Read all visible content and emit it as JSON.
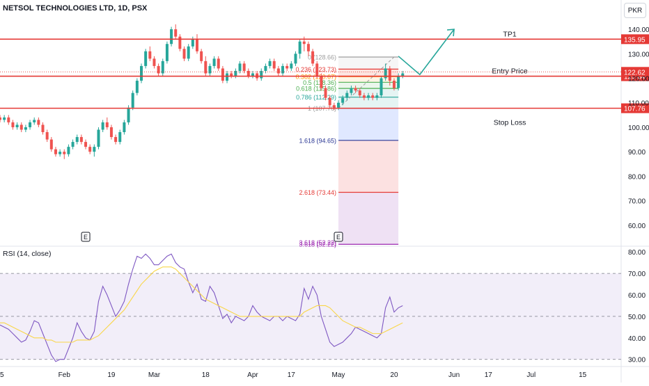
{
  "header": {
    "title": "NETSOL TECHNOLOGIES LTD, 1D, PSX",
    "currency": "PKR",
    "rsi_title": "RSI (14, close)"
  },
  "colors": {
    "up": "#26a69a",
    "down": "#ef5350",
    "level_line": "#e53935",
    "arrow": "#26a69a",
    "rsi_line": "#7e57c2",
    "rsi_ma": "#f9d648",
    "rsi_band": "#ede7f6"
  },
  "chart_data": [
    {
      "type": "candlestick",
      "title": "NETSOL TECHNOLOGIES LTD, 1D, PSX",
      "ylim": [
        52,
        144
      ],
      "xlim": [
        0,
        145
      ],
      "y_ticks": [
        60,
        70,
        80,
        90,
        100,
        110,
        120,
        130,
        140
      ],
      "y_tick_labels": [
        "60.00",
        "70.00",
        "80.00",
        "90.00",
        "100.00",
        "110.00",
        "120.00",
        "130.00",
        "140.00"
      ],
      "x_ticks": [
        {
          "x": 0,
          "label": "15"
        },
        {
          "x": 15,
          "label": "Feb"
        },
        {
          "x": 26,
          "label": "19"
        },
        {
          "x": 36,
          "label": "Mar"
        },
        {
          "x": 48,
          "label": "18"
        },
        {
          "x": 59,
          "label": "Apr"
        },
        {
          "x": 68,
          "label": "17"
        },
        {
          "x": 79,
          "label": "May"
        },
        {
          "x": 92,
          "label": "20"
        },
        {
          "x": 106,
          "label": "Jun"
        },
        {
          "x": 114,
          "label": "17"
        },
        {
          "x": 124,
          "label": "Jul"
        },
        {
          "x": 136,
          "label": "15"
        }
      ],
      "candles": [
        [
          104,
          103,
          105,
          102
        ],
        [
          103,
          104,
          105,
          102
        ],
        [
          104,
          102,
          105,
          101
        ],
        [
          102,
          100,
          103,
          99
        ],
        [
          100,
          101,
          102,
          99
        ],
        [
          101,
          99,
          102,
          98
        ],
        [
          99,
          100,
          101,
          98
        ],
        [
          100,
          102,
          103,
          99
        ],
        [
          102,
          103,
          104,
          101
        ],
        [
          103,
          101,
          104,
          100
        ],
        [
          101,
          98,
          102,
          97
        ],
        [
          98,
          95,
          99,
          94
        ],
        [
          95,
          91,
          96,
          90
        ],
        [
          91,
          89,
          92,
          88
        ],
        [
          89,
          90,
          91,
          88
        ],
        [
          90,
          89,
          91,
          87
        ],
        [
          89,
          92,
          93,
          88
        ],
        [
          92,
          94,
          95,
          91
        ],
        [
          94,
          96,
          97,
          93
        ],
        [
          96,
          94,
          97,
          93
        ],
        [
          94,
          92,
          95,
          91
        ],
        [
          92,
          90,
          93,
          89
        ],
        [
          90,
          92,
          93,
          88
        ],
        [
          92,
          99,
          100,
          91
        ],
        [
          99,
          102,
          103,
          98
        ],
        [
          102,
          100,
          104,
          99
        ],
        [
          100,
          96,
          101,
          95
        ],
        [
          96,
          94,
          97,
          93
        ],
        [
          94,
          98,
          99,
          93
        ],
        [
          98,
          102,
          103,
          97
        ],
        [
          102,
          108,
          109,
          101
        ],
        [
          108,
          114,
          115,
          107
        ],
        [
          114,
          119,
          120,
          113
        ],
        [
          119,
          125,
          126,
          118
        ],
        [
          125,
          131,
          132,
          124
        ],
        [
          131,
          128,
          133,
          127
        ],
        [
          128,
          125,
          129,
          124
        ],
        [
          125,
          122,
          126,
          121
        ],
        [
          122,
          127,
          128,
          121
        ],
        [
          127,
          134,
          135,
          126
        ],
        [
          134,
          140,
          141,
          133
        ],
        [
          140,
          137,
          142,
          136
        ],
        [
          137,
          132,
          138,
          131
        ],
        [
          132,
          128,
          133,
          127
        ],
        [
          128,
          133,
          134,
          127
        ],
        [
          133,
          136,
          137,
          132
        ],
        [
          136,
          131,
          138,
          130
        ],
        [
          131,
          127,
          132,
          126
        ],
        [
          127,
          122,
          129,
          121
        ],
        [
          122,
          125,
          126,
          121
        ],
        [
          125,
          128,
          129,
          124
        ],
        [
          128,
          124,
          129,
          123
        ],
        [
          124,
          119,
          125,
          118
        ],
        [
          119,
          122,
          123,
          118
        ],
        [
          122,
          121,
          123,
          120
        ],
        [
          121,
          123,
          124,
          120
        ],
        [
          123,
          126,
          127,
          122
        ],
        [
          126,
          123,
          127,
          122
        ],
        [
          123,
          121,
          124,
          120
        ],
        [
          121,
          122,
          123,
          120
        ],
        [
          122,
          120,
          123,
          119
        ],
        [
          120,
          123,
          124,
          119
        ],
        [
          123,
          125,
          126,
          122
        ],
        [
          125,
          127,
          128,
          124
        ],
        [
          127,
          124,
          128,
          123
        ],
        [
          124,
          122,
          125,
          121
        ],
        [
          122,
          125,
          126,
          121
        ],
        [
          125,
          124,
          126,
          123
        ],
        [
          124,
          126,
          127,
          123
        ],
        [
          126,
          130,
          131,
          125
        ],
        [
          130,
          135,
          136,
          128
        ],
        [
          135,
          134,
          137,
          131
        ],
        [
          134,
          131,
          135,
          129
        ],
        [
          131,
          126,
          132,
          125
        ],
        [
          126,
          121,
          127,
          120
        ],
        [
          121,
          116,
          122,
          115
        ],
        [
          116,
          112,
          117,
          111
        ],
        [
          112,
          109,
          113,
          108
        ],
        [
          109,
          108,
          110,
          107
        ],
        [
          108,
          110,
          111,
          107
        ],
        [
          110,
          112,
          113,
          109
        ],
        [
          112,
          114,
          115,
          111
        ],
        [
          114,
          116,
          117,
          113
        ],
        [
          116,
          115,
          117,
          114
        ],
        [
          115,
          113,
          116,
          112
        ],
        [
          113,
          112,
          114,
          111
        ],
        [
          112,
          113,
          114,
          111
        ],
        [
          113,
          112,
          114,
          111
        ],
        [
          112,
          113,
          114,
          111
        ],
        [
          113,
          120,
          121,
          112
        ],
        [
          120,
          124,
          126,
          119
        ],
        [
          124,
          119,
          125,
          117
        ],
        [
          119,
          116,
          120,
          115
        ],
        [
          116,
          121,
          122,
          115
        ],
        [
          121,
          122,
          123,
          120
        ]
      ],
      "horizontal_lines": [
        {
          "name": "TP1",
          "price": 135.95,
          "label": "135.95",
          "x_label": 119
        },
        {
          "name": "Entry Price",
          "price": 120.84,
          "label": "120.84",
          "x_label": 119
        },
        {
          "name": "Stop Loss",
          "price": 107.76,
          "label": "107.76",
          "x_label": 119
        }
      ],
      "line_texts": [
        "TP1",
        "Entry Price",
        "Stop Loss"
      ],
      "current_price": {
        "price": 122.62,
        "label": "122.62"
      },
      "fib_levels": [
        {
          "ratio": 0,
          "price": 128.66,
          "label": "0 (128.66)",
          "color": "#9e9e9e"
        },
        {
          "ratio": 0.236,
          "price": 123.73,
          "label": "0.236 (123.73)",
          "color": "#e53935"
        },
        {
          "ratio": 0.382,
          "price": 120.67,
          "label": "0.382 (120.67)",
          "color": "#ff9800"
        },
        {
          "ratio": 0.5,
          "price": 118.36,
          "label": "0.5 (118.36)",
          "color": "#4caf50"
        },
        {
          "ratio": 0.618,
          "price": 115.86,
          "label": "0.618 (115.86)",
          "color": "#4caf50"
        },
        {
          "ratio": 0.786,
          "price": 112.29,
          "label": "0.786 (112.29)",
          "color": "#26a69a"
        },
        {
          "ratio": 1,
          "price": 107.76,
          "label": "1 (107.76)",
          "color": "#9e9e9e"
        },
        {
          "ratio": 1.618,
          "price": 94.65,
          "label": "1.618 (94.65)",
          "color": "#283593"
        },
        {
          "ratio": 2.618,
          "price": 73.44,
          "label": "2.618 (73.44)",
          "color": "#e53935"
        },
        {
          "ratio": 3.618,
          "price": 52.22,
          "label": "3.618 (52.22)",
          "color": "#9c27b0"
        }
      ],
      "fib_zone": {
        "x_start": 79,
        "x_end": 93
      },
      "earnings_markers": [
        {
          "x": 20,
          "label": "E"
        },
        {
          "x": 79,
          "label": "E"
        }
      ],
      "projection_arrow": [
        [
          93,
          129
        ],
        [
          98,
          121.5
        ],
        [
          106,
          140
        ]
      ]
    },
    {
      "type": "line",
      "title": "RSI (14, close)",
      "ylim": [
        27,
        82
      ],
      "y_ticks": [
        30,
        40,
        50,
        60,
        70,
        80
      ],
      "y_tick_labels": [
        "30.00",
        "40.00",
        "50.00",
        "60.00",
        "70.00",
        "80.00"
      ],
      "band": [
        30,
        70
      ],
      "midline": 50,
      "series": [
        {
          "name": "RSI",
          "values": [
            46,
            45,
            44,
            42,
            40,
            38,
            39,
            43,
            48,
            47,
            42,
            37,
            32,
            29,
            30,
            30,
            35,
            40,
            47,
            43,
            40,
            39,
            43,
            57,
            64,
            60,
            55,
            50,
            53,
            57,
            65,
            72,
            78,
            77,
            79,
            77,
            74,
            74,
            76,
            78,
            79,
            75,
            73,
            72,
            66,
            61,
            65,
            58,
            57,
            64,
            61,
            55,
            49,
            51,
            47,
            50,
            49,
            48,
            50,
            55,
            52,
            50,
            49,
            48,
            50,
            50,
            48,
            50,
            49,
            48,
            51,
            63,
            58,
            64,
            60,
            50,
            44,
            38,
            36,
            37,
            38,
            40,
            42,
            45,
            44,
            43,
            42,
            41,
            40,
            42,
            54,
            59,
            52,
            54,
            55
          ]
        },
        {
          "name": "RSI MA",
          "values": [
            47,
            47,
            46,
            45,
            44,
            43,
            42,
            41,
            40,
            40,
            40,
            39,
            39,
            38,
            38,
            38,
            38,
            38,
            39,
            39,
            39,
            39,
            40,
            41,
            43,
            45,
            47,
            49,
            51,
            53,
            56,
            59,
            62,
            65,
            67,
            69,
            71,
            72,
            73,
            73,
            73,
            72,
            70,
            68,
            66,
            64,
            62,
            60,
            58,
            57,
            56,
            55,
            54,
            53,
            52,
            51,
            50,
            50,
            50,
            50,
            50,
            50,
            50,
            50,
            50,
            50,
            50,
            50,
            50,
            50,
            50,
            52,
            53,
            54,
            55,
            55,
            55,
            54,
            52,
            50,
            48,
            47,
            46,
            45,
            45,
            44,
            43,
            42,
            42,
            42,
            43,
            44,
            45,
            46,
            47
          ]
        }
      ]
    }
  ]
}
